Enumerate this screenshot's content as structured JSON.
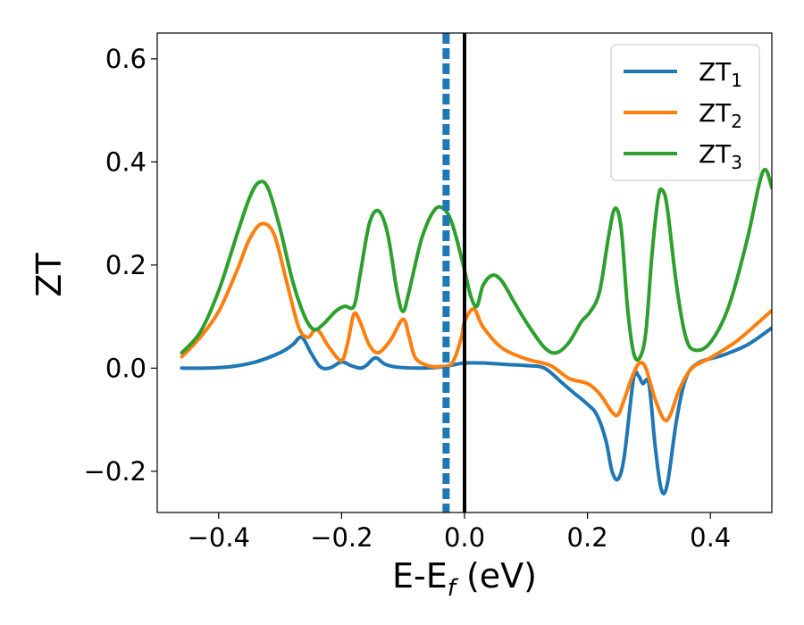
{
  "chart_data": {
    "type": "line",
    "xlabel": {
      "main": "E-E",
      "sub": "f",
      "tail": " (eV)"
    },
    "ylabel": "ZT",
    "xlim": [
      -0.5,
      0.5
    ],
    "ylim": [
      -0.28,
      0.65
    ],
    "xticks": [
      -0.4,
      -0.2,
      0.0,
      0.2,
      0.4
    ],
    "xtick_labels": [
      "−0.4",
      "−0.2",
      "0.0",
      "0.2",
      "0.4"
    ],
    "yticks": [
      -0.2,
      0.0,
      0.2,
      0.4,
      0.6
    ],
    "ytick_labels": [
      "−0.2",
      "0.0",
      "0.2",
      "0.4",
      "0.6"
    ],
    "grid": false,
    "legend_position": "top-right",
    "vertical_lines": [
      {
        "x": 0.0,
        "style": "solid",
        "color": "#000000"
      },
      {
        "x": -0.03,
        "style": "dashed",
        "color": "#1f77b4"
      }
    ],
    "series": [
      {
        "name": "ZT",
        "name_sub": "1",
        "color": "#1f77b4",
        "points": [
          [
            -0.46,
            0.0
          ],
          [
            -0.42,
            0.0
          ],
          [
            -0.38,
            0.003
          ],
          [
            -0.34,
            0.012
          ],
          [
            -0.3,
            0.03
          ],
          [
            -0.28,
            0.045
          ],
          [
            -0.265,
            0.06
          ],
          [
            -0.25,
            0.03
          ],
          [
            -0.235,
            0.003
          ],
          [
            -0.22,
            0.0
          ],
          [
            -0.2,
            0.012
          ],
          [
            -0.185,
            0.005
          ],
          [
            -0.17,
            0.0
          ],
          [
            -0.16,
            0.005
          ],
          [
            -0.145,
            0.02
          ],
          [
            -0.13,
            0.008
          ],
          [
            -0.11,
            0.002
          ],
          [
            -0.07,
            0.0
          ],
          [
            -0.04,
            0.002
          ],
          [
            -0.02,
            0.006
          ],
          [
            0.0,
            0.01
          ],
          [
            0.03,
            0.01
          ],
          [
            0.07,
            0.007
          ],
          [
            0.1,
            0.005
          ],
          [
            0.13,
            0.0
          ],
          [
            0.16,
            -0.03
          ],
          [
            0.18,
            -0.05
          ],
          [
            0.2,
            -0.07
          ],
          [
            0.215,
            -0.09
          ],
          [
            0.23,
            -0.14
          ],
          [
            0.24,
            -0.2
          ],
          [
            0.25,
            -0.215
          ],
          [
            0.26,
            -0.17
          ],
          [
            0.275,
            -0.02
          ],
          [
            0.283,
            -0.015
          ],
          [
            0.29,
            -0.03
          ],
          [
            0.3,
            -0.03
          ],
          [
            0.31,
            -0.15
          ],
          [
            0.32,
            -0.235
          ],
          [
            0.33,
            -0.225
          ],
          [
            0.345,
            -0.1
          ],
          [
            0.36,
            -0.02
          ],
          [
            0.38,
            0.01
          ],
          [
            0.42,
            0.025
          ],
          [
            0.46,
            0.045
          ],
          [
            0.5,
            0.078
          ]
        ]
      },
      {
        "name": "ZT",
        "name_sub": "2",
        "color": "#ff7f0e",
        "points": [
          [
            -0.46,
            0.022
          ],
          [
            -0.43,
            0.06
          ],
          [
            -0.4,
            0.11
          ],
          [
            -0.37,
            0.19
          ],
          [
            -0.35,
            0.25
          ],
          [
            -0.33,
            0.28
          ],
          [
            -0.31,
            0.26
          ],
          [
            -0.29,
            0.17
          ],
          [
            -0.27,
            0.08
          ],
          [
            -0.255,
            0.06
          ],
          [
            -0.24,
            0.075
          ],
          [
            -0.22,
            0.04
          ],
          [
            -0.2,
            0.015
          ],
          [
            -0.19,
            0.05
          ],
          [
            -0.18,
            0.105
          ],
          [
            -0.17,
            0.09
          ],
          [
            -0.155,
            0.045
          ],
          [
            -0.14,
            0.03
          ],
          [
            -0.12,
            0.055
          ],
          [
            -0.1,
            0.095
          ],
          [
            -0.09,
            0.06
          ],
          [
            -0.08,
            0.02
          ],
          [
            -0.06,
            0.005
          ],
          [
            -0.04,
            0.003
          ],
          [
            -0.02,
            0.01
          ],
          [
            -0.005,
            0.06
          ],
          [
            0.0,
            0.09
          ],
          [
            0.015,
            0.115
          ],
          [
            0.03,
            0.08
          ],
          [
            0.06,
            0.04
          ],
          [
            0.1,
            0.018
          ],
          [
            0.14,
            0.005
          ],
          [
            0.17,
            -0.02
          ],
          [
            0.2,
            -0.03
          ],
          [
            0.22,
            -0.05
          ],
          [
            0.24,
            -0.085
          ],
          [
            0.25,
            -0.09
          ],
          [
            0.26,
            -0.06
          ],
          [
            0.275,
            -0.01
          ],
          [
            0.285,
            0.01
          ],
          [
            0.295,
            0.0
          ],
          [
            0.31,
            -0.06
          ],
          [
            0.325,
            -0.1
          ],
          [
            0.335,
            -0.09
          ],
          [
            0.35,
            -0.04
          ],
          [
            0.37,
            0.0
          ],
          [
            0.4,
            0.02
          ],
          [
            0.44,
            0.05
          ],
          [
            0.47,
            0.08
          ],
          [
            0.5,
            0.112
          ]
        ]
      },
      {
        "name": "ZT",
        "name_sub": "3",
        "color": "#2ca02c",
        "points": [
          [
            -0.46,
            0.03
          ],
          [
            -0.43,
            0.07
          ],
          [
            -0.4,
            0.15
          ],
          [
            -0.37,
            0.26
          ],
          [
            -0.35,
            0.33
          ],
          [
            -0.335,
            0.36
          ],
          [
            -0.32,
            0.35
          ],
          [
            -0.3,
            0.27
          ],
          [
            -0.28,
            0.17
          ],
          [
            -0.26,
            0.1
          ],
          [
            -0.245,
            0.075
          ],
          [
            -0.23,
            0.085
          ],
          [
            -0.21,
            0.11
          ],
          [
            -0.195,
            0.12
          ],
          [
            -0.18,
            0.12
          ],
          [
            -0.17,
            0.18
          ],
          [
            -0.155,
            0.28
          ],
          [
            -0.14,
            0.305
          ],
          [
            -0.125,
            0.26
          ],
          [
            -0.11,
            0.15
          ],
          [
            -0.1,
            0.11
          ],
          [
            -0.09,
            0.15
          ],
          [
            -0.07,
            0.25
          ],
          [
            -0.05,
            0.305
          ],
          [
            -0.035,
            0.31
          ],
          [
            -0.02,
            0.28
          ],
          [
            0.0,
            0.19
          ],
          [
            0.01,
            0.14
          ],
          [
            0.02,
            0.12
          ],
          [
            0.03,
            0.16
          ],
          [
            0.045,
            0.18
          ],
          [
            0.06,
            0.17
          ],
          [
            0.08,
            0.13
          ],
          [
            0.1,
            0.09
          ],
          [
            0.13,
            0.04
          ],
          [
            0.15,
            0.03
          ],
          [
            0.17,
            0.05
          ],
          [
            0.19,
            0.09
          ],
          [
            0.205,
            0.11
          ],
          [
            0.22,
            0.15
          ],
          [
            0.235,
            0.26
          ],
          [
            0.245,
            0.31
          ],
          [
            0.255,
            0.27
          ],
          [
            0.265,
            0.12
          ],
          [
            0.275,
            0.03
          ],
          [
            0.285,
            0.02
          ],
          [
            0.295,
            0.07
          ],
          [
            0.305,
            0.22
          ],
          [
            0.315,
            0.33
          ],
          [
            0.322,
            0.345
          ],
          [
            0.33,
            0.31
          ],
          [
            0.345,
            0.16
          ],
          [
            0.36,
            0.06
          ],
          [
            0.375,
            0.035
          ],
          [
            0.4,
            0.05
          ],
          [
            0.43,
            0.12
          ],
          [
            0.46,
            0.25
          ],
          [
            0.48,
            0.36
          ],
          [
            0.49,
            0.385
          ],
          [
            0.5,
            0.35
          ]
        ]
      }
    ]
  }
}
